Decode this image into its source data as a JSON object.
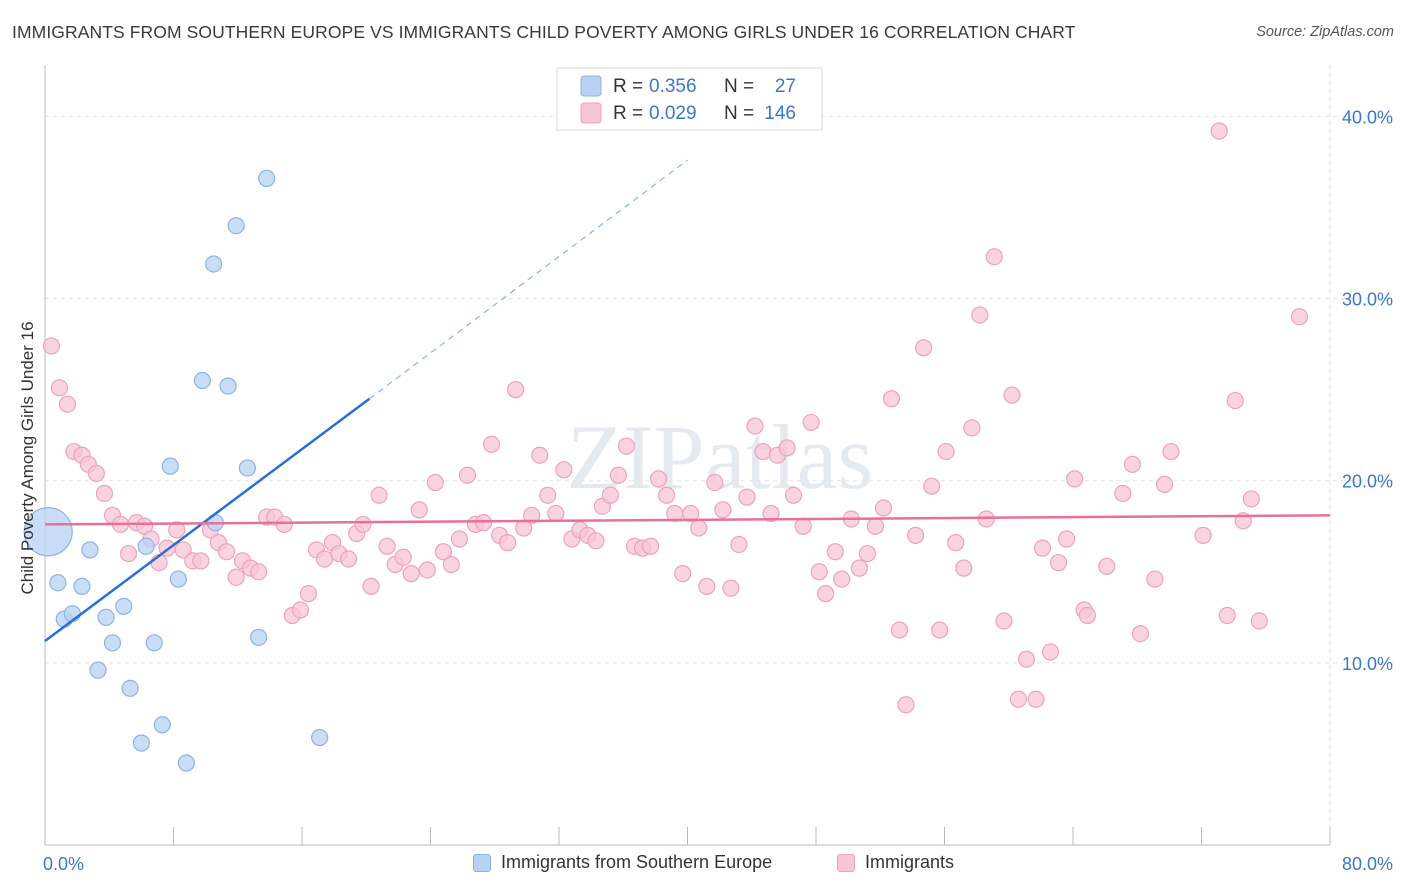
{
  "title": "IMMIGRANTS FROM SOUTHERN EUROPE VS IMMIGRANTS CHILD POVERTY AMONG GIRLS UNDER 16 CORRELATION CHART",
  "source": "Source: ZipAtlas.com",
  "watermark": "ZIPatlas",
  "colors": {
    "blue_fill": "#b8d2f4",
    "blue_stroke": "#8db3e6",
    "blue_line": "#2a6fd6",
    "pink_fill": "#f7c6d6",
    "pink_stroke": "#eea3bb",
    "pink_line": "#e8709a",
    "value_text": "#3a78c9"
  },
  "legend_top": [
    {
      "r_label": "R =",
      "r_value": "0.356",
      "n_label": "N =",
      "n_value": "27"
    },
    {
      "r_label": "R =",
      "r_value": "0.029",
      "n_label": "N =",
      "n_value": "146"
    }
  ],
  "legend_bottom": [
    "Immigrants from Southern Europe",
    "Immigrants"
  ],
  "chart_data": {
    "type": "scatter",
    "xlabel": "",
    "ylabel": "Child Poverty Among Girls Under 16",
    "xlim": [
      0,
      80
    ],
    "ylim": [
      0,
      42
    ],
    "x_tick_labels": [
      {
        "value": 0,
        "label": "0.0%"
      },
      {
        "value": 80,
        "label": "80.0%"
      }
    ],
    "y_tick_labels": [
      {
        "value": 10,
        "label": "10.0%"
      },
      {
        "value": 20,
        "label": "20.0%"
      },
      {
        "value": 30,
        "label": "30.0%"
      },
      {
        "value": 40,
        "label": "40.0%"
      }
    ],
    "x_minor_ticks": [
      0,
      8,
      16,
      24,
      32,
      40,
      48,
      56,
      64,
      72,
      80
    ],
    "grid": true,
    "series": [
      {
        "name": "Immigrants from Southern Europe",
        "color": "blue",
        "R": 0.356,
        "N": 27,
        "trend": {
          "x0": 0,
          "y0": 11.2,
          "x1": 20.2,
          "y1": 24.5,
          "dashed_to_x": 40,
          "dashed_to_y": 37.6
        },
        "points": [
          {
            "x": 0.2,
            "y": 17.2,
            "size": "large"
          },
          {
            "x": 0.8,
            "y": 14.4
          },
          {
            "x": 1.2,
            "y": 12.4
          },
          {
            "x": 1.7,
            "y": 12.7
          },
          {
            "x": 2.3,
            "y": 14.2
          },
          {
            "x": 2.8,
            "y": 16.2
          },
          {
            "x": 3.3,
            "y": 9.6
          },
          {
            "x": 3.8,
            "y": 12.5
          },
          {
            "x": 4.2,
            "y": 11.1
          },
          {
            "x": 4.9,
            "y": 13.1
          },
          {
            "x": 5.3,
            "y": 8.6
          },
          {
            "x": 6.0,
            "y": 5.6
          },
          {
            "x": 6.3,
            "y": 16.4
          },
          {
            "x": 6.8,
            "y": 11.1
          },
          {
            "x": 7.3,
            "y": 6.6
          },
          {
            "x": 7.8,
            "y": 20.8
          },
          {
            "x": 8.3,
            "y": 14.6
          },
          {
            "x": 8.8,
            "y": 4.5
          },
          {
            "x": 9.8,
            "y": 25.5
          },
          {
            "x": 10.5,
            "y": 31.9
          },
          {
            "x": 10.6,
            "y": 17.7
          },
          {
            "x": 11.4,
            "y": 25.2
          },
          {
            "x": 11.9,
            "y": 34.0
          },
          {
            "x": 12.6,
            "y": 20.7
          },
          {
            "x": 13.3,
            "y": 11.4
          },
          {
            "x": 13.8,
            "y": 36.6
          },
          {
            "x": 17.1,
            "y": 5.9
          }
        ]
      },
      {
        "name": "Immigrants",
        "color": "pink",
        "R": 0.029,
        "N": 146,
        "trend": {
          "x0": 0,
          "y0": 17.6,
          "x1": 80,
          "y1": 18.1
        },
        "points": [
          {
            "x": 0.4,
            "y": 27.4
          },
          {
            "x": 0.9,
            "y": 25.1
          },
          {
            "x": 1.4,
            "y": 24.2
          },
          {
            "x": 1.8,
            "y": 21.6
          },
          {
            "x": 2.3,
            "y": 21.4
          },
          {
            "x": 2.7,
            "y": 20.9
          },
          {
            "x": 3.2,
            "y": 20.4
          },
          {
            "x": 3.7,
            "y": 19.3
          },
          {
            "x": 4.2,
            "y": 18.1
          },
          {
            "x": 4.7,
            "y": 17.6
          },
          {
            "x": 5.2,
            "y": 16.0
          },
          {
            "x": 5.7,
            "y": 17.7
          },
          {
            "x": 6.2,
            "y": 17.5
          },
          {
            "x": 6.6,
            "y": 16.8
          },
          {
            "x": 7.1,
            "y": 15.5
          },
          {
            "x": 7.6,
            "y": 16.3
          },
          {
            "x": 8.2,
            "y": 17.3
          },
          {
            "x": 8.6,
            "y": 16.2
          },
          {
            "x": 9.2,
            "y": 15.6
          },
          {
            "x": 9.7,
            "y": 15.6
          },
          {
            "x": 10.3,
            "y": 17.3
          },
          {
            "x": 10.8,
            "y": 16.6
          },
          {
            "x": 11.3,
            "y": 16.1
          },
          {
            "x": 11.9,
            "y": 14.7
          },
          {
            "x": 12.3,
            "y": 15.6
          },
          {
            "x": 12.8,
            "y": 15.2
          },
          {
            "x": 13.3,
            "y": 15.0
          },
          {
            "x": 13.8,
            "y": 18.0
          },
          {
            "x": 14.3,
            "y": 18.0
          },
          {
            "x": 14.9,
            "y": 17.6
          },
          {
            "x": 15.4,
            "y": 12.6
          },
          {
            "x": 15.9,
            "y": 12.9
          },
          {
            "x": 16.4,
            "y": 13.8
          },
          {
            "x": 16.9,
            "y": 16.2
          },
          {
            "x": 17.4,
            "y": 15.7
          },
          {
            "x": 17.9,
            "y": 16.6
          },
          {
            "x": 18.3,
            "y": 16.0
          },
          {
            "x": 18.9,
            "y": 15.7
          },
          {
            "x": 19.4,
            "y": 17.1
          },
          {
            "x": 19.8,
            "y": 17.6
          },
          {
            "x": 20.3,
            "y": 14.2
          },
          {
            "x": 20.8,
            "y": 19.2
          },
          {
            "x": 21.3,
            "y": 16.4
          },
          {
            "x": 21.8,
            "y": 15.4
          },
          {
            "x": 22.3,
            "y": 15.8
          },
          {
            "x": 22.8,
            "y": 14.9
          },
          {
            "x": 23.3,
            "y": 18.4
          },
          {
            "x": 23.8,
            "y": 15.1
          },
          {
            "x": 24.3,
            "y": 19.9
          },
          {
            "x": 24.8,
            "y": 16.1
          },
          {
            "x": 25.3,
            "y": 15.4
          },
          {
            "x": 25.8,
            "y": 16.8
          },
          {
            "x": 26.3,
            "y": 20.3
          },
          {
            "x": 26.8,
            "y": 17.6
          },
          {
            "x": 27.3,
            "y": 17.7
          },
          {
            "x": 27.8,
            "y": 22.0
          },
          {
            "x": 28.3,
            "y": 17.0
          },
          {
            "x": 28.8,
            "y": 16.6
          },
          {
            "x": 29.3,
            "y": 25.0
          },
          {
            "x": 29.8,
            "y": 17.4
          },
          {
            "x": 30.3,
            "y": 18.1
          },
          {
            "x": 30.8,
            "y": 21.4
          },
          {
            "x": 31.3,
            "y": 19.2
          },
          {
            "x": 31.8,
            "y": 18.2
          },
          {
            "x": 32.3,
            "y": 20.6
          },
          {
            "x": 32.8,
            "y": 16.8
          },
          {
            "x": 33.3,
            "y": 17.3
          },
          {
            "x": 33.8,
            "y": 17.0
          },
          {
            "x": 34.3,
            "y": 16.7
          },
          {
            "x": 34.7,
            "y": 18.6
          },
          {
            "x": 35.2,
            "y": 19.2
          },
          {
            "x": 35.7,
            "y": 20.3
          },
          {
            "x": 36.2,
            "y": 21.9
          },
          {
            "x": 36.7,
            "y": 16.4
          },
          {
            "x": 37.2,
            "y": 16.3
          },
          {
            "x": 37.7,
            "y": 16.4
          },
          {
            "x": 38.2,
            "y": 20.1
          },
          {
            "x": 38.7,
            "y": 19.2
          },
          {
            "x": 39.2,
            "y": 18.2
          },
          {
            "x": 39.7,
            "y": 14.9
          },
          {
            "x": 40.2,
            "y": 18.2
          },
          {
            "x": 40.7,
            "y": 17.4
          },
          {
            "x": 41.2,
            "y": 14.2
          },
          {
            "x": 41.7,
            "y": 19.9
          },
          {
            "x": 42.2,
            "y": 18.4
          },
          {
            "x": 42.7,
            "y": 14.1
          },
          {
            "x": 43.2,
            "y": 16.5
          },
          {
            "x": 43.7,
            "y": 19.1
          },
          {
            "x": 44.2,
            "y": 23.0
          },
          {
            "x": 44.7,
            "y": 21.6
          },
          {
            "x": 45.2,
            "y": 18.2
          },
          {
            "x": 45.6,
            "y": 21.4
          },
          {
            "x": 46.2,
            "y": 21.8
          },
          {
            "x": 46.6,
            "y": 19.2
          },
          {
            "x": 47.2,
            "y": 17.5
          },
          {
            "x": 47.7,
            "y": 23.2
          },
          {
            "x": 48.2,
            "y": 15.0
          },
          {
            "x": 48.6,
            "y": 13.8
          },
          {
            "x": 49.2,
            "y": 16.1
          },
          {
            "x": 49.6,
            "y": 14.6
          },
          {
            "x": 50.2,
            "y": 17.9
          },
          {
            "x": 50.7,
            "y": 15.2
          },
          {
            "x": 51.2,
            "y": 16.0
          },
          {
            "x": 51.7,
            "y": 17.5
          },
          {
            "x": 52.2,
            "y": 18.5
          },
          {
            "x": 52.7,
            "y": 24.5
          },
          {
            "x": 53.2,
            "y": 11.8
          },
          {
            "x": 53.6,
            "y": 7.7
          },
          {
            "x": 54.2,
            "y": 17.0
          },
          {
            "x": 54.7,
            "y": 27.3
          },
          {
            "x": 55.2,
            "y": 19.7
          },
          {
            "x": 55.7,
            "y": 11.8
          },
          {
            "x": 56.1,
            "y": 21.6
          },
          {
            "x": 56.7,
            "y": 16.6
          },
          {
            "x": 57.2,
            "y": 15.2
          },
          {
            "x": 57.7,
            "y": 22.9
          },
          {
            "x": 58.2,
            "y": 29.1
          },
          {
            "x": 58.6,
            "y": 17.9
          },
          {
            "x": 59.1,
            "y": 32.3
          },
          {
            "x": 59.7,
            "y": 12.3
          },
          {
            "x": 60.2,
            "y": 24.7
          },
          {
            "x": 60.6,
            "y": 8.0
          },
          {
            "x": 61.1,
            "y": 10.2
          },
          {
            "x": 61.7,
            "y": 8.0
          },
          {
            "x": 62.1,
            "y": 16.3
          },
          {
            "x": 62.6,
            "y": 10.6
          },
          {
            "x": 63.1,
            "y": 15.5
          },
          {
            "x": 63.6,
            "y": 16.8
          },
          {
            "x": 64.1,
            "y": 20.1
          },
          {
            "x": 64.7,
            "y": 12.9
          },
          {
            "x": 64.9,
            "y": 12.6
          },
          {
            "x": 66.1,
            "y": 15.3
          },
          {
            "x": 67.1,
            "y": 19.3
          },
          {
            "x": 67.7,
            "y": 20.9
          },
          {
            "x": 68.2,
            "y": 11.6
          },
          {
            "x": 69.1,
            "y": 14.6
          },
          {
            "x": 69.7,
            "y": 19.8
          },
          {
            "x": 70.1,
            "y": 21.6
          },
          {
            "x": 72.1,
            "y": 17.0
          },
          {
            "x": 73.1,
            "y": 39.2
          },
          {
            "x": 73.6,
            "y": 12.6
          },
          {
            "x": 74.1,
            "y": 24.4
          },
          {
            "x": 74.6,
            "y": 17.8
          },
          {
            "x": 75.1,
            "y": 19.0
          },
          {
            "x": 75.6,
            "y": 12.3
          },
          {
            "x": 78.1,
            "y": 29.0
          }
        ]
      }
    ]
  }
}
